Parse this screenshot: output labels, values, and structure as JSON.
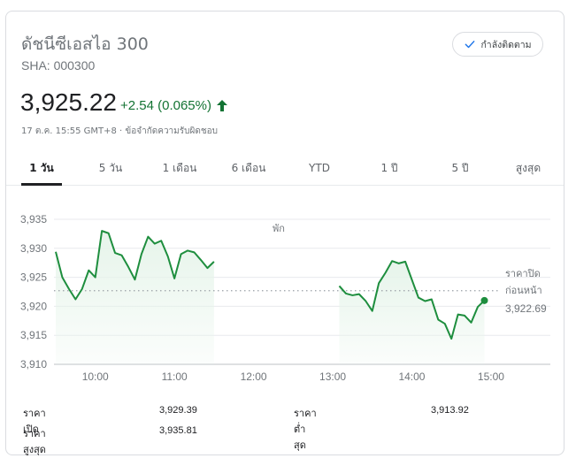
{
  "header": {
    "title": "ดัชนีซีเอสไอ 300",
    "ticker": "SHA: 000300",
    "follow_label": "กำลังติดตาม"
  },
  "quote": {
    "price": "3,925.22",
    "change": "+2.54 (0.065%)",
    "meta": "17 ต.ค. 15:55 GMT+8 · ข้อจำกัดความรับผิดชอบ"
  },
  "tabs": [
    {
      "label": "1 วัน",
      "active": true
    },
    {
      "label": "5 วัน",
      "active": false
    },
    {
      "label": "1 เดือน",
      "active": false
    },
    {
      "label": "6 เดือน",
      "active": false
    },
    {
      "label": "YTD",
      "active": false
    },
    {
      "label": "1 ปี",
      "active": false
    },
    {
      "label": "5 ปี",
      "active": false
    },
    {
      "label": "สูงสุด",
      "active": false
    }
  ],
  "colors": {
    "up": "#137333",
    "line": "#1e8e3e",
    "fill": "#e6f4ea",
    "reference": "#9aa0a6"
  },
  "chart_data": {
    "type": "line",
    "xlabel": "",
    "ylabel": "",
    "ylim": [
      3910,
      3935
    ],
    "yticks": [
      "3,935",
      "3,930",
      "3,925",
      "3,920",
      "3,915",
      "3,910"
    ],
    "ytick_values": [
      3935,
      3930,
      3925,
      3920,
      3915,
      3910
    ],
    "xlim": [
      9.5,
      15.75
    ],
    "xticks": [
      "10:00",
      "11:00",
      "12:00",
      "13:00",
      "14:00",
      "15:00"
    ],
    "xtick_values": [
      10,
      11,
      12,
      13,
      14,
      15
    ],
    "grid": "horizontal",
    "break_label": "พัก",
    "reference": {
      "label_line1": "ราคาปิด",
      "label_line2": "ก่อนหน้า",
      "value_label": "3,922.69",
      "value": 3922.69
    },
    "series": [
      {
        "segments": [
          {
            "x": [
              9.5,
              9.583,
              9.667,
              9.75,
              9.833,
              9.917,
              10.0,
              10.083,
              10.167,
              10.25,
              10.333,
              10.417,
              10.5,
              10.583,
              10.667,
              10.75,
              10.833,
              10.917,
              11.0,
              11.083,
              11.167,
              11.25,
              11.333,
              11.417,
              11.5
            ],
            "y": [
              3929.4,
              3925.0,
              3923.0,
              3921.2,
              3923.0,
              3926.2,
              3925.0,
              3933.0,
              3932.6,
              3929.2,
              3928.8,
              3926.8,
              3924.6,
              3929.0,
              3932.0,
              3930.8,
              3931.3,
              3928.6,
              3924.8,
              3929.0,
              3929.6,
              3929.3,
              3928.0,
              3926.6,
              3927.7
            ]
          },
          {
            "x": [
              13.083,
              13.167,
              13.25,
              13.333,
              13.417,
              13.5,
              13.583,
              13.667,
              13.75,
              13.833,
              13.917,
              14.0,
              14.083,
              14.167,
              14.25,
              14.333,
              14.417,
              14.5,
              14.583,
              14.667,
              14.75,
              14.833,
              14.917
            ],
            "y": [
              3923.5,
              3922.2,
              3921.9,
              3922.1,
              3920.9,
              3919.2,
              3924.0,
              3925.8,
              3927.8,
              3927.4,
              3927.7,
              3924.6,
              3921.5,
              3920.9,
              3921.2,
              3917.7,
              3917.0,
              3914.4,
              3918.6,
              3918.4,
              3917.2,
              3919.9,
              3921.0
            ]
          }
        ]
      }
    ]
  },
  "stats": [
    {
      "label": "ราคาเปิด",
      "value": "3,929.39"
    },
    {
      "label": "ราคาต่ำสุด",
      "value": "3,913.92"
    },
    {
      "label": "ราคาสูงสุด",
      "value": "3,935.81"
    }
  ]
}
